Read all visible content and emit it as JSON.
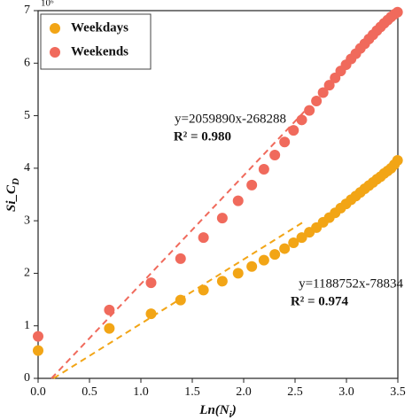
{
  "chart_data": {
    "type": "scatter",
    "y_multiplier": "10⁶",
    "xlabel": [
      "Ln(N",
      "i",
      ")"
    ],
    "ylabel": [
      "Si_C",
      "D"
    ],
    "x": [
      0,
      0.693,
      1.099,
      1.386,
      1.609,
      1.792,
      1.946,
      2.079,
      2.197,
      2.303,
      2.398,
      2.485,
      2.565,
      2.639,
      2.708,
      2.773,
      2.833,
      2.89,
      2.944,
      2.996,
      3.045,
      3.091,
      3.135,
      3.178,
      3.219,
      3.258,
      3.296,
      3.332,
      3.367,
      3.401,
      3.434,
      3.466,
      3.497
    ],
    "series": [
      {
        "name": "Weekdays",
        "color": "#f2a516",
        "values": [
          0.53,
          0.95,
          1.23,
          1.49,
          1.68,
          1.85,
          2.0,
          2.13,
          2.25,
          2.36,
          2.47,
          2.58,
          2.68,
          2.78,
          2.87,
          2.97,
          3.06,
          3.15,
          3.24,
          3.32,
          3.4,
          3.47,
          3.54,
          3.61,
          3.67,
          3.73,
          3.79,
          3.84,
          3.9,
          3.95,
          4.0,
          4.07,
          4.15
        ]
      },
      {
        "name": "Weekends",
        "color": "#f06a5c",
        "values": [
          0.8,
          1.3,
          1.82,
          2.28,
          2.68,
          3.05,
          3.38,
          3.68,
          3.98,
          4.25,
          4.5,
          4.72,
          4.92,
          5.1,
          5.28,
          5.44,
          5.58,
          5.72,
          5.85,
          5.97,
          6.08,
          6.18,
          6.28,
          6.37,
          6.46,
          6.54,
          6.62,
          6.69,
          6.76,
          6.82,
          6.88,
          6.93,
          6.97
        ]
      }
    ],
    "fit_lines": [
      {
        "color": "#f2a516",
        "x": [
          0.15,
          2.6
        ],
        "values": [
          0,
          3.0
        ]
      },
      {
        "color": "#f06a5c",
        "x": [
          0.13,
          2.6
        ],
        "values": [
          0,
          5.1
        ]
      }
    ],
    "annotations": [
      {
        "equation": "y=1188752x-78834",
        "r2": "R² = 0.974"
      },
      {
        "equation": "y=2059890x-268288",
        "r2": "R² = 0.980"
      }
    ],
    "xlim": [
      0,
      3.5
    ],
    "xticks": [
      {
        "value": 0,
        "label": "0.0"
      },
      0.5,
      {
        "value": 1,
        "label": "1.0"
      },
      1.5,
      {
        "value": 2,
        "label": "2.0"
      },
      2.5,
      {
        "value": 3,
        "label": "3.0"
      },
      3.5
    ],
    "ylim": [
      0,
      7
    ],
    "yticks": [
      0,
      1,
      2,
      3,
      4,
      5,
      6,
      7
    ],
    "legend": "upper left"
  }
}
